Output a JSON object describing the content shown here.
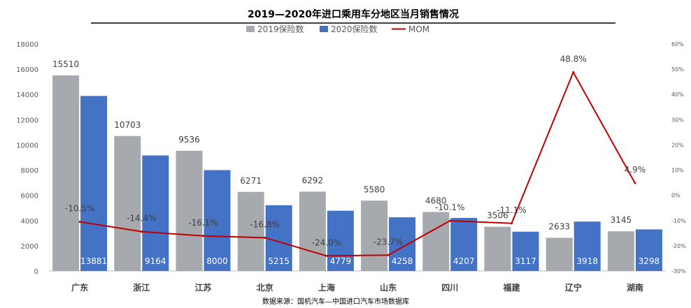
{
  "title": "2019—2020年进口乘用车分地区当月销售情况",
  "source": "数据来源：国机汽车—中国进口汽车市场数据库",
  "colors": {
    "series2019": "#A6A9AD",
    "series2020": "#4472C4",
    "mom": "#C00000"
  },
  "chart_data": {
    "type": "bar",
    "title": "2019—2020年进口乘用车分地区当月销售情况",
    "categories": [
      "广东",
      "浙江",
      "江苏",
      "北京",
      "上海",
      "山东",
      "四川",
      "福建",
      "辽宁",
      "湖南"
    ],
    "series": [
      {
        "name": "2019保险数",
        "type": "bar",
        "axis": "left",
        "values": [
          15510,
          10703,
          9536,
          6271,
          6292,
          5580,
          4680,
          3506,
          2633,
          3145
        ],
        "labels": [
          "15510",
          "10703",
          "9536",
          "6271",
          "6292",
          "5580",
          "4680",
          "3506",
          "2633",
          "3145"
        ]
      },
      {
        "name": "2020保险数",
        "type": "bar",
        "axis": "left",
        "values": [
          13881,
          9164,
          8000,
          5215,
          4779,
          4258,
          4207,
          3117,
          3918,
          3298
        ],
        "labels": [
          "13881",
          "9164",
          "8000",
          "5215",
          "4779",
          "4258",
          "4207",
          "3117",
          "3918",
          "3298"
        ]
      },
      {
        "name": "MOM",
        "type": "line",
        "axis": "right",
        "values": [
          -10.5,
          -14.4,
          -16.1,
          -16.8,
          -24.0,
          -23.7,
          -10.1,
          -11.1,
          48.8,
          4.9
        ],
        "labels": [
          "-10.5%",
          "-14.4%",
          "-16.1%",
          "-16.8%",
          "-24.0%",
          "-23.7%",
          "-10.1%",
          "-11.1%",
          "48.8%",
          "4.9%"
        ]
      }
    ],
    "y_left": {
      "min": 0,
      "max": 18000,
      "ticks": [
        "0",
        "2000",
        "4000",
        "6000",
        "8000",
        "10000",
        "12000",
        "14000",
        "16000",
        "18000"
      ]
    },
    "y_right": {
      "min": -30,
      "max": 60,
      "ticks": [
        "-30%",
        "-20%",
        "-10%",
        "0%",
        "10%",
        "20%",
        "30%",
        "40%",
        "50%",
        "60%"
      ]
    },
    "legend_position": "top-center",
    "grid": false
  }
}
